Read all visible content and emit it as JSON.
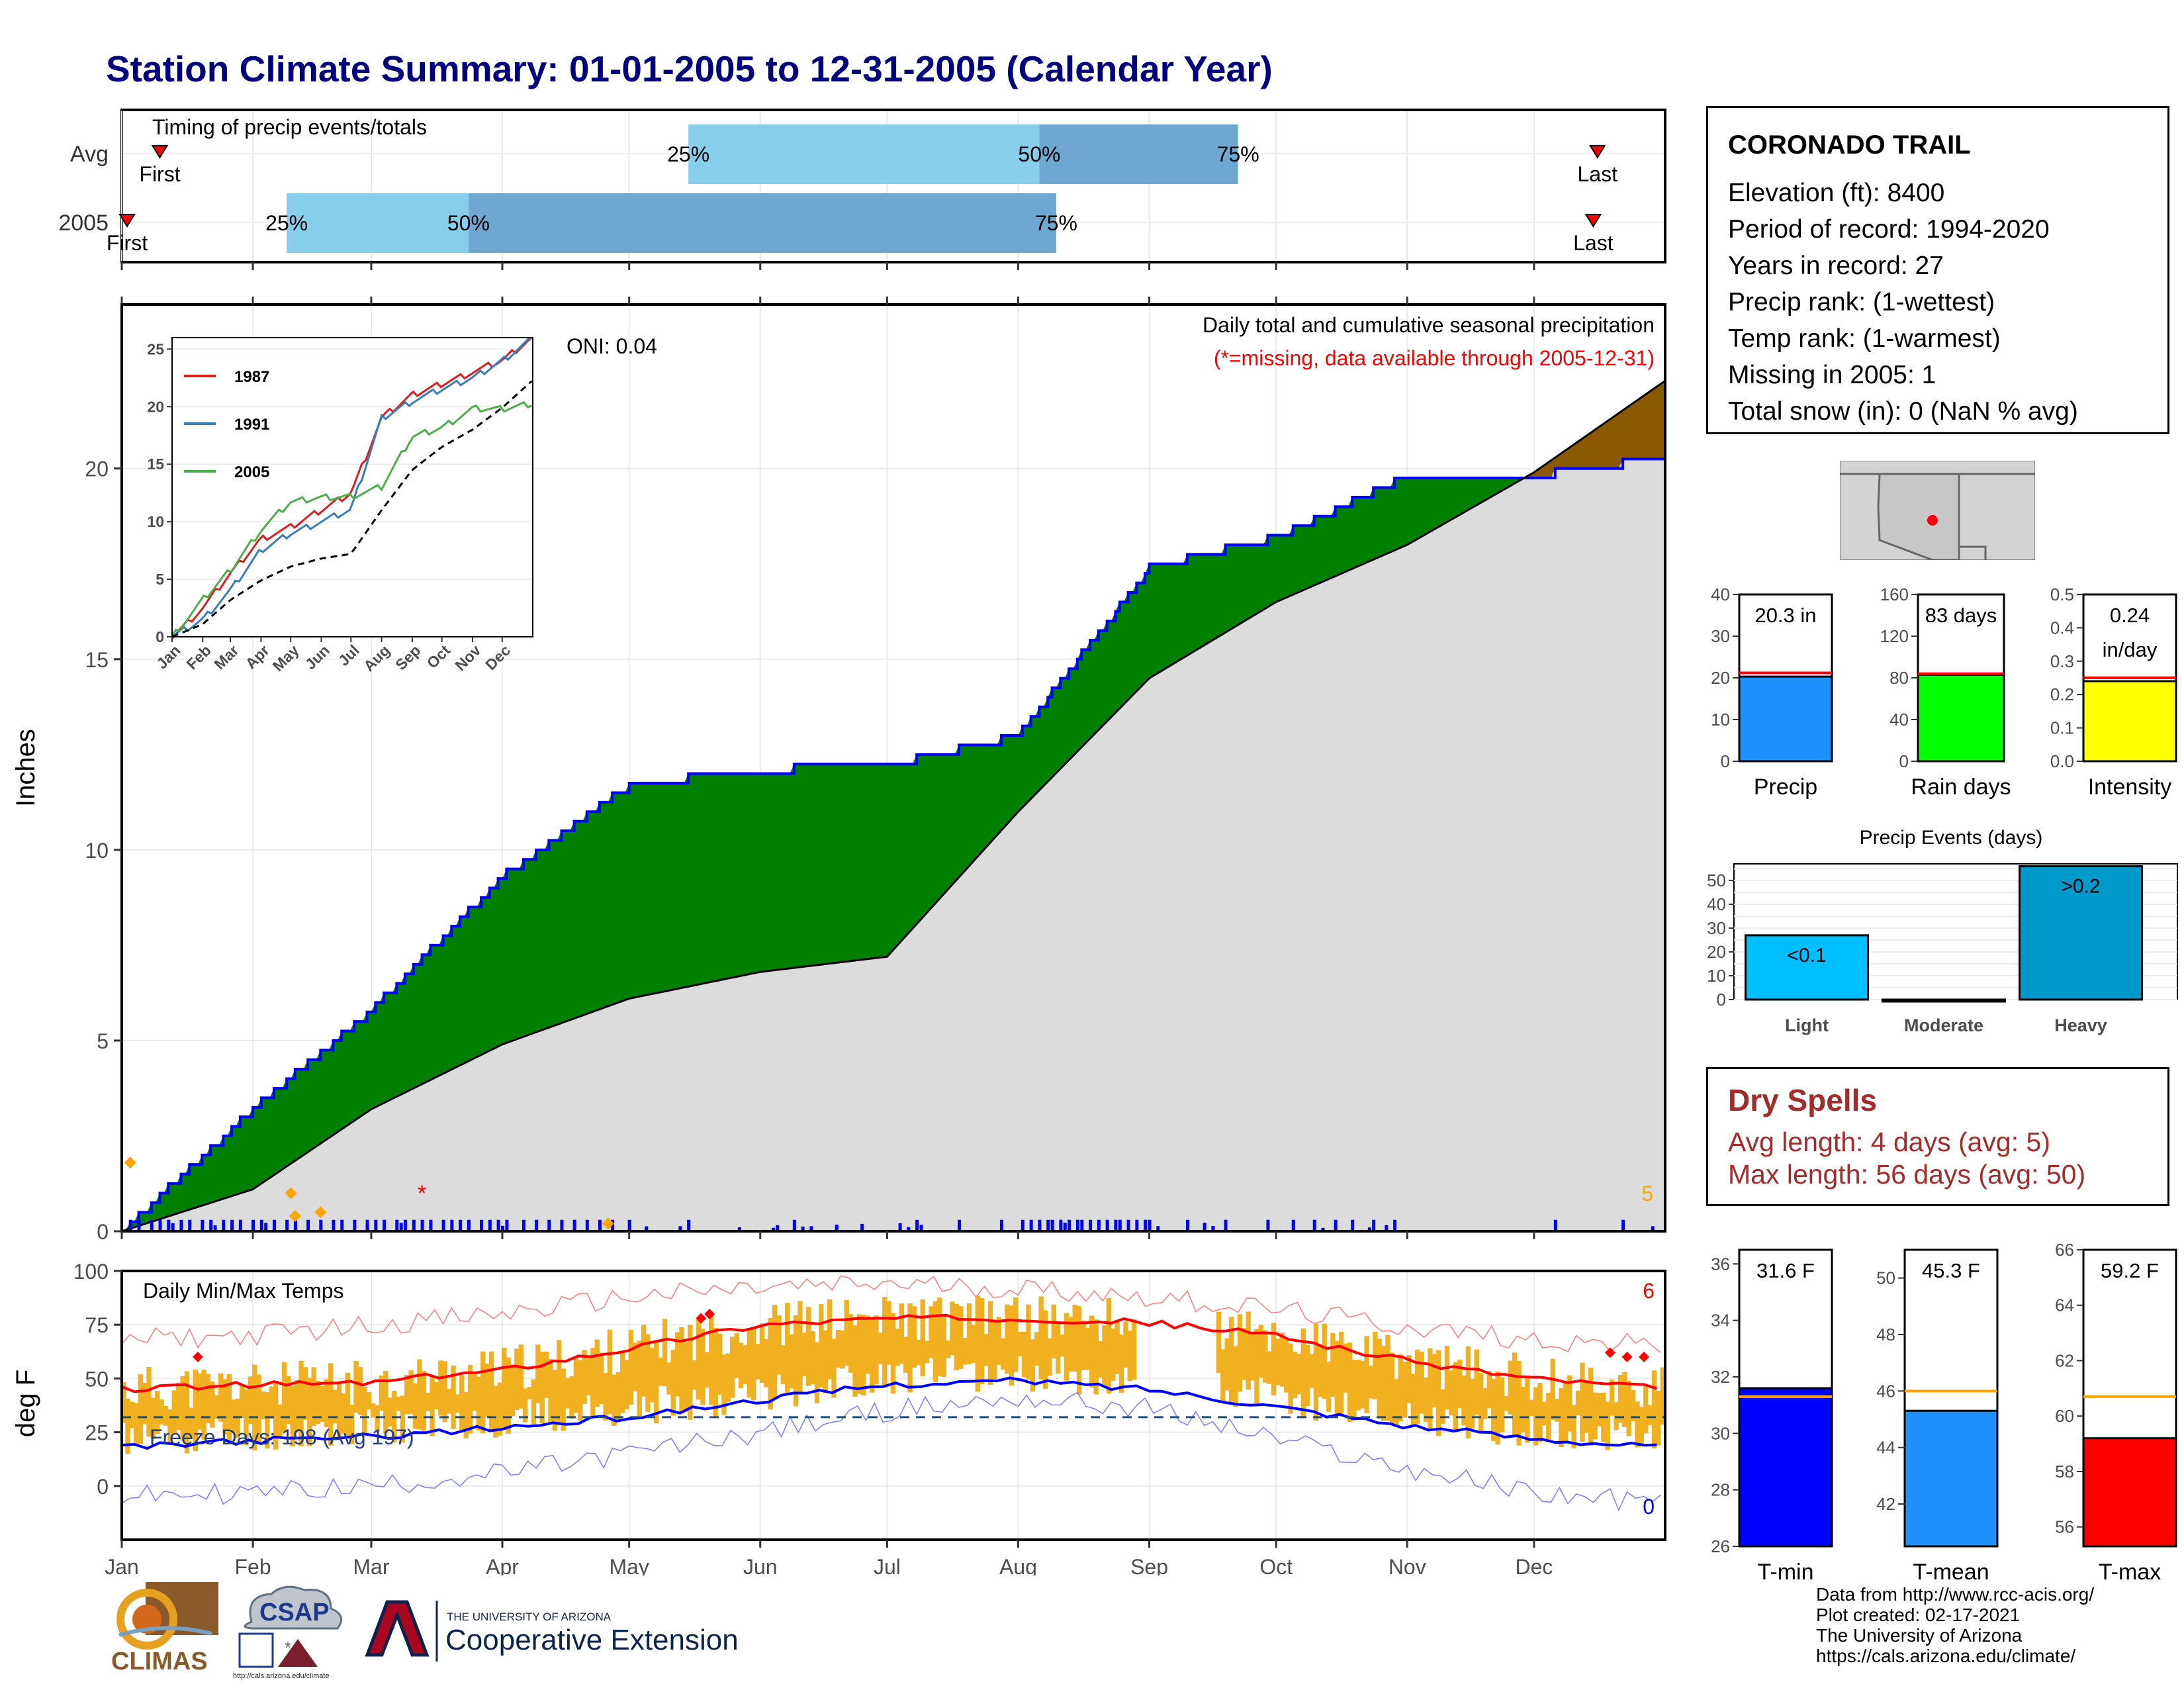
{
  "title": "Station Climate Summary: 01-01-2005 to 12-31-2005 (Calendar Year)",
  "station": {
    "name": "CORONADO TRAIL",
    "lines": [
      "Elevation (ft): 8400",
      "Period of record: 1994-2020",
      "Years in record: 27",
      "Precip rank:  (1-wettest)",
      "Temp rank:  (1-warmest)",
      "Missing in 2005: 1",
      "Total snow (in): 0 (NaN % avg)"
    ]
  },
  "timing": {
    "title": "Timing of precip events/totals",
    "rows": [
      {
        "label": "Avg",
        "first": "First",
        "last": "Last",
        "first_doy": 9,
        "last_doy": 349,
        "p25_doy": 134,
        "p50_doy": 217,
        "p75_doy": 264,
        "labels": [
          "25%",
          "50%",
          "75%"
        ]
      },
      {
        "label": "2005",
        "first": "First",
        "last": "Last",
        "first_doy": 0,
        "last_doy": 348,
        "p25_doy": 39,
        "p50_doy": 82,
        "p75_doy": 221,
        "labels": [
          "25%",
          "50%",
          "75%"
        ]
      }
    ]
  },
  "main_precip": {
    "ylabel": "Inches",
    "title_lines": [
      "Daily total and cumulative seasonal precipitation",
      "(*=missing, data available through 2005-12-31)"
    ],
    "oni": "ONI: 0.04",
    "corner_count": "5",
    "yticks": [
      "0",
      "5",
      "10",
      "15",
      "20"
    ]
  },
  "inset": {
    "legend": [
      "1987",
      "1991",
      "2005"
    ],
    "yticks": [
      "0",
      "5",
      "10",
      "15",
      "20",
      "25"
    ],
    "xticks": [
      "Jan",
      "Feb",
      "Mar",
      "Apr",
      "May",
      "Jun",
      "Jul",
      "Aug",
      "Sep",
      "Oct",
      "Nov",
      "Dec"
    ]
  },
  "temps": {
    "ylabel": "deg F",
    "title": "Daily Min/Max Temps",
    "freeze": "Freeze Days: 198 (Avg 197)",
    "count_max": "6",
    "count_min": "0",
    "yticks": [
      "0",
      "25",
      "50",
      "75",
      "100"
    ]
  },
  "months": [
    "Jan",
    "Feb",
    "Mar",
    "Apr",
    "May",
    "Jun",
    "Jul",
    "Aug",
    "Sep",
    "Oct",
    "Nov",
    "Dec"
  ],
  "mini_bars": {
    "precip": {
      "label": "Precip",
      "value_label": "20.3 in",
      "yticks": [
        "0",
        "10",
        "20",
        "30",
        "40"
      ],
      "ymax": 40,
      "value": 20.3,
      "avg": 21.2,
      "color": "#1e90ff"
    },
    "raindays": {
      "label": "Rain days",
      "value_label": "83 days",
      "yticks": [
        "0",
        "40",
        "80",
        "120",
        "160"
      ],
      "ymax": 160,
      "value": 83,
      "avg": 84,
      "color": "#00ff00"
    },
    "intensity": {
      "label": "Intensity",
      "value_label": [
        "0.24",
        "in/day"
      ],
      "yticks": [
        "0.0",
        "0.1",
        "0.2",
        "0.3",
        "0.4",
        "0.5"
      ],
      "ymax": 0.5,
      "value": 0.24,
      "avg": 0.25,
      "color": "#ffff00"
    }
  },
  "events": {
    "title": "Precip Events (days)",
    "categories": [
      "Light",
      "Moderate",
      "Heavy"
    ],
    "labels": [
      "<0.1",
      "",
      ">0.2"
    ],
    "values": [
      27,
      0,
      56
    ],
    "yticks": [
      "0",
      "10",
      "20",
      "30",
      "40",
      "50"
    ],
    "colors": [
      "#00bfff",
      "#000000",
      "#0099cc"
    ]
  },
  "dry_spells": {
    "title": "Dry Spells",
    "lines": [
      "Avg length: 4 days (avg: 5)",
      "Max length: 56 days (avg: 50)"
    ]
  },
  "temp_bars": {
    "tmin": {
      "label": "T-min",
      "value_label": "31.6 F",
      "yticks": [
        "26",
        "28",
        "30",
        "32",
        "34",
        "36"
      ],
      "ymin": 26,
      "ymax": 36.5,
      "value": 31.6,
      "avg": 31.3,
      "color": "#0000ff"
    },
    "tmean": {
      "label": "T-mean",
      "value_label": "45.3 F",
      "yticks": [
        "42",
        "44",
        "46",
        "48",
        "50"
      ],
      "ymin": 40.5,
      "ymax": 51,
      "value": 45.3,
      "avg": 46,
      "color": "#1e90ff"
    },
    "tmax": {
      "label": "T-max",
      "value_label": "59.2 F",
      "yticks": [
        "56",
        "58",
        "60",
        "62",
        "64",
        "66"
      ],
      "ymin": 55.3,
      "ymax": 66,
      "value": 59.2,
      "avg": 60.7,
      "color": "#ff0000"
    }
  },
  "credits": [
    "Data from http://www.rcc-acis.org/",
    "Plot created: 02-17-2021",
    "The University of Arizona",
    "https://cals.arizona.edu/climate/"
  ],
  "logos": {
    "climas": "CLIMAS",
    "csap": "CSAP",
    "csap_url": "http://cals.arizona.edu/climate",
    "ua_small": "THE UNIVERSITY OF ARIZONA",
    "ua_big": "Cooperative Extension"
  },
  "chart_data": [
    {
      "type": "area",
      "title": "Daily total and cumulative seasonal precipitation",
      "ylabel": "Inches",
      "ylim": [
        0,
        24.3
      ],
      "x": [
        "Jan",
        "Feb",
        "Mar",
        "Apr",
        "May",
        "Jun",
        "Jul",
        "Aug",
        "Sep",
        "Oct",
        "Nov",
        "Dec",
        "Dec 31"
      ],
      "series": [
        {
          "name": "",
          "values": [
            0,
            3.2,
            5.8,
            9.3,
            11.7,
            12.1,
            12.2,
            13.0,
            17.4,
            18.2,
            19.8,
            19.8,
            20.3
          ]
        },
        {
          "name": "",
          "values": [
            0,
            1.1,
            3.2,
            4.9,
            6.1,
            6.8,
            7.2,
            11.0,
            14.5,
            16.5,
            18.0,
            19.9,
            22.3
          ]
        }
      ]
    },
    {
      "type": "line",
      "legend": [
        "1987",
        "1991",
        "2005"
      ],
      "ylim": [
        0,
        26
      ],
      "x": [
        "Jan",
        "Feb",
        "Mar",
        "Apr",
        "May",
        "Jun",
        "Jul",
        "Aug",
        "Sep",
        "Oct",
        "Nov",
        "Dec",
        "Dec 31"
      ],
      "series": [
        {
          "name": "1987",
          "values": [
            0,
            2.5,
            5.5,
            8.5,
            9.5,
            11.0,
            12.5,
            19.0,
            21.0,
            22.0,
            23.0,
            24.0,
            26.0
          ]
        },
        {
          "name": "1991",
          "values": [
            0,
            1.5,
            4.0,
            7.5,
            9.0,
            10.0,
            11.0,
            19.0,
            20.5,
            21.5,
            22.5,
            24.0,
            26.0
          ]
        },
        {
          "name": "2005",
          "values": [
            0,
            3.2,
            5.8,
            9.3,
            11.7,
            12.1,
            12.2,
            13.0,
            17.4,
            18.2,
            19.8,
            19.8,
            20.3
          ]
        },
        {
          "name": "",
          "values": [
            0,
            1.1,
            3.2,
            4.9,
            6.1,
            6.8,
            7.2,
            11.0,
            14.5,
            16.5,
            18.0,
            19.9,
            22.3
          ]
        }
      ]
    },
    {
      "type": "line",
      "title": "Daily Min/Max Temps",
      "ylabel": "deg F",
      "ylim": [
        -25,
        100
      ],
      "x": [
        "Jan",
        "Feb",
        "Mar",
        "Apr",
        "May",
        "Jun",
        "Jul",
        "Aug",
        "Sep",
        "Oct",
        "Nov",
        "Dec",
        "Dec 31"
      ],
      "series": [
        {
          "name": "",
          "values": [
            45,
            47,
            48,
            54,
            64,
            75,
            78,
            78,
            76,
            70,
            58,
            50,
            45
          ]
        },
        {
          "name": "",
          "values": [
            18,
            21,
            23,
            27,
            32,
            40,
            47,
            49,
            45,
            37,
            28,
            22,
            18
          ]
        },
        {
          "name": "",
          "values": [
            68,
            70,
            75,
            80,
            88,
            92,
            94,
            92,
            88,
            82,
            74,
            68,
            65
          ]
        },
        {
          "name": "",
          "values": [
            -5,
            -3,
            0,
            6,
            15,
            25,
            35,
            41,
            36,
            22,
            8,
            -3,
            -8
          ]
        }
      ]
    }
  ]
}
